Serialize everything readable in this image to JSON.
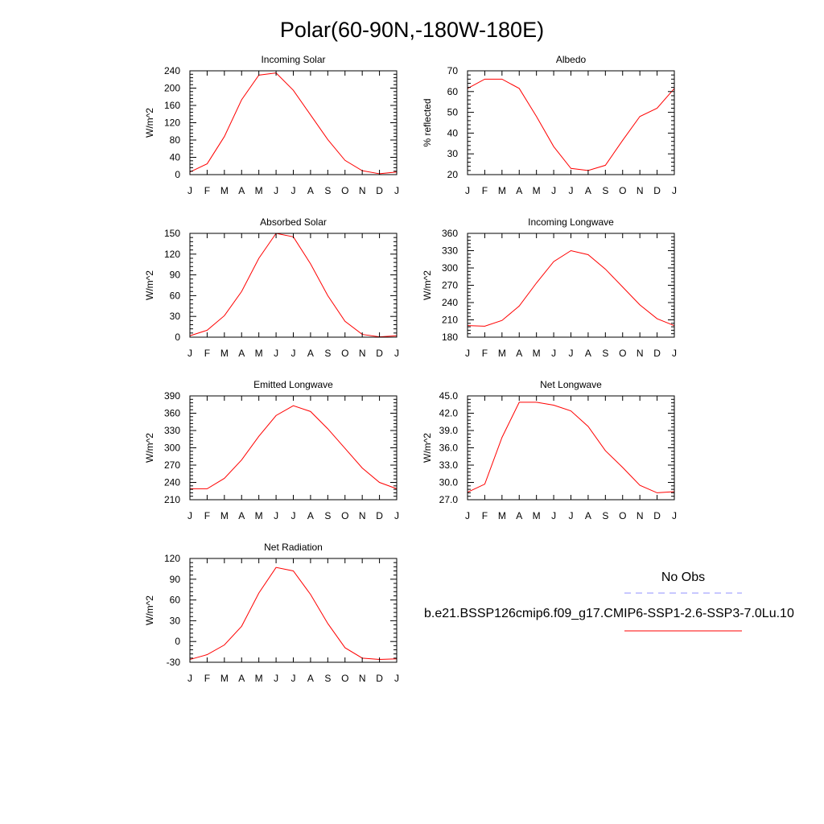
{
  "title": "Polar(60-90N,-180W-180E)",
  "months": [
    "J",
    "F",
    "M",
    "A",
    "M",
    "J",
    "J",
    "A",
    "S",
    "O",
    "N",
    "D",
    "J"
  ],
  "colors": {
    "model": "#ff0000",
    "obs": "#9090ff"
  },
  "chart_data": [
    {
      "type": "line",
      "title": "Incoming Solar",
      "ylabel": "W/m^2",
      "ylim": [
        0,
        240
      ],
      "yticks": [
        0,
        40,
        80,
        120,
        160,
        200,
        240
      ],
      "ytick_labels": [
        "0",
        "40",
        "80",
        "120",
        "160",
        "200",
        "240"
      ],
      "categories": [
        "J",
        "F",
        "M",
        "A",
        "M",
        "J",
        "J",
        "A",
        "S",
        "O",
        "N",
        "D",
        "J"
      ],
      "series": [
        {
          "values": [
            6,
            25,
            88,
            173,
            230,
            235,
            195,
            138,
            81,
            33,
            9,
            2,
            6
          ]
        }
      ]
    },
    {
      "type": "line",
      "title": "Albedo",
      "ylabel": "% reflected",
      "ylim": [
        20,
        70
      ],
      "yticks": [
        20,
        30,
        40,
        50,
        60,
        70
      ],
      "ytick_labels": [
        "20",
        "30",
        "40",
        "50",
        "60",
        "70"
      ],
      "categories": [
        "J",
        "F",
        "M",
        "A",
        "M",
        "J",
        "J",
        "A",
        "S",
        "O",
        "N",
        "D",
        "J"
      ],
      "series": [
        {
          "values": [
            61.5,
            66,
            66,
            61.5,
            48,
            33.5,
            23,
            22,
            24.5,
            36.5,
            48,
            52,
            61.5
          ]
        }
      ]
    },
    {
      "type": "line",
      "title": "Absorbed Solar",
      "ylabel": "W/m^2",
      "ylim": [
        0,
        150
      ],
      "yticks": [
        0,
        30,
        60,
        90,
        120,
        150
      ],
      "ytick_labels": [
        "0",
        "30",
        "60",
        "90",
        "120",
        "150"
      ],
      "categories": [
        "J",
        "F",
        "M",
        "A",
        "M",
        "J",
        "J",
        "A",
        "S",
        "O",
        "N",
        "D",
        "J"
      ],
      "series": [
        {
          "values": [
            2,
            10,
            31,
            66,
            114,
            150,
            145,
            106,
            60,
            23,
            4,
            0.5,
            2
          ]
        }
      ]
    },
    {
      "type": "line",
      "title": "Incoming Longwave",
      "ylabel": "W/m^2",
      "ylim": [
        180,
        360
      ],
      "yticks": [
        180,
        210,
        240,
        270,
        300,
        330,
        360
      ],
      "ytick_labels": [
        "180",
        "210",
        "240",
        "270",
        "300",
        "330",
        "360"
      ],
      "categories": [
        "J",
        "F",
        "M",
        "A",
        "M",
        "J",
        "J",
        "A",
        "S",
        "O",
        "N",
        "D",
        "J"
      ],
      "series": [
        {
          "values": [
            200,
            199,
            209,
            234,
            274,
            311,
            330,
            323,
            298,
            267,
            236,
            212,
            200
          ]
        }
      ]
    },
    {
      "type": "line",
      "title": "Emitted Longwave",
      "ylabel": "W/m^2",
      "ylim": [
        210,
        390
      ],
      "yticks": [
        210,
        240,
        270,
        300,
        330,
        360,
        390
      ],
      "ytick_labels": [
        "210",
        "240",
        "270",
        "300",
        "330",
        "360",
        "390"
      ],
      "categories": [
        "J",
        "F",
        "M",
        "A",
        "M",
        "J",
        "J",
        "A",
        "S",
        "O",
        "N",
        "D",
        "J"
      ],
      "series": [
        {
          "values": [
            229,
            229,
            247,
            279,
            320,
            356,
            373,
            363,
            333,
            299,
            265,
            240,
            229
          ]
        }
      ]
    },
    {
      "type": "line",
      "title": "Net Longwave",
      "ylabel": "W/m^2",
      "ylim": [
        27,
        45
      ],
      "yticks": [
        27,
        30,
        33,
        36,
        39,
        42,
        45
      ],
      "ytick_labels": [
        "27.0",
        "30.0",
        "33.0",
        "36.0",
        "39.0",
        "42.0",
        "45.0"
      ],
      "categories": [
        "J",
        "F",
        "M",
        "A",
        "M",
        "J",
        "J",
        "A",
        "S",
        "O",
        "N",
        "D",
        "J"
      ],
      "series": [
        {
          "values": [
            28.3,
            29.7,
            37.8,
            43.9,
            43.9,
            43.4,
            42.4,
            39.7,
            35.5,
            32.6,
            29.5,
            28.2,
            28.4
          ]
        }
      ]
    },
    {
      "type": "line",
      "title": "Net Radiation",
      "ylabel": "W/m^2",
      "ylim": [
        -30,
        120
      ],
      "yticks": [
        -30,
        0,
        30,
        60,
        90,
        120
      ],
      "ytick_labels": [
        "-30",
        "0",
        "30",
        "60",
        "90",
        "120"
      ],
      "categories": [
        "J",
        "F",
        "M",
        "A",
        "M",
        "J",
        "J",
        "A",
        "S",
        "O",
        "N",
        "D",
        "J"
      ],
      "series": [
        {
          "values": [
            -26,
            -19,
            -5,
            22,
            70,
            107,
            102,
            68,
            26,
            -9,
            -24,
            -26,
            -25
          ]
        }
      ]
    }
  ],
  "legend": {
    "obs_label": "No Obs",
    "model_label": "b.e21.BSSP126cmip6.f09_g17.CMIP6-SSP1-2.6-SSP3-7.0Lu.10"
  }
}
